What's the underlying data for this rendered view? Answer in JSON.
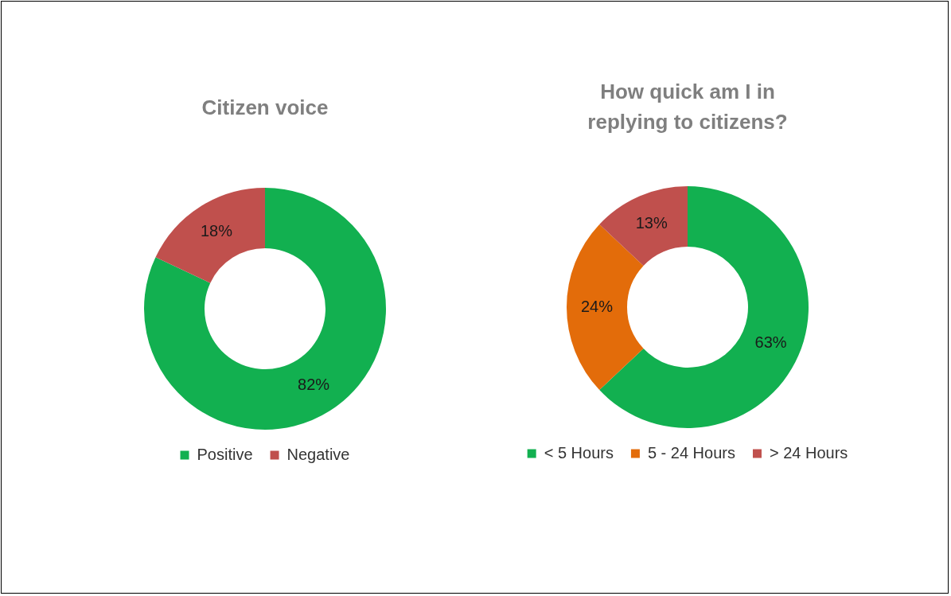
{
  "chart_data": [
    {
      "type": "donut",
      "title": "Citizen voice",
      "categories": [
        "Positive",
        "Negative"
      ],
      "values": [
        82,
        18
      ],
      "value_labels": [
        "82%",
        "18%"
      ],
      "colors": [
        "#12b050",
        "#c0504d"
      ],
      "legend": "bottom"
    },
    {
      "type": "donut",
      "title": "How quick am I in replying to citizens?",
      "categories": [
        "< 5 Hours",
        "5 - 24 Hours",
        "> 24 Hours"
      ],
      "values": [
        63,
        24,
        13
      ],
      "value_labels": [
        "63%",
        "24%",
        "13%"
      ],
      "colors": [
        "#12b050",
        "#e36c0a",
        "#c0504d"
      ],
      "legend": "bottom"
    }
  ]
}
